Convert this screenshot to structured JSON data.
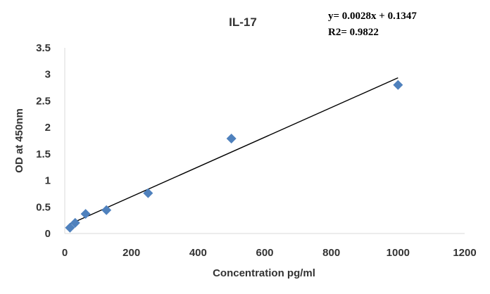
{
  "chart_data": {
    "type": "scatter",
    "title": "IL-17",
    "xlabel": "Concentration pg/ml",
    "ylabel": "OD at 450nm",
    "xlim": [
      0,
      1200
    ],
    "ylim": [
      0,
      3.5
    ],
    "x_ticks": [
      "0",
      "200",
      "400",
      "600",
      "800",
      "1000",
      "1200"
    ],
    "y_ticks": [
      "0",
      "0.5",
      "1",
      "1.5",
      "2",
      "2.5",
      "3",
      "3.5"
    ],
    "grid": false,
    "legend": "none",
    "marker": "diamond",
    "series": [
      {
        "color": "#4f81bd",
        "points": [
          {
            "x": 15.6,
            "y": 0.11
          },
          {
            "x": 31.25,
            "y": 0.2
          },
          {
            "x": 62.5,
            "y": 0.37
          },
          {
            "x": 125,
            "y": 0.44
          },
          {
            "x": 250,
            "y": 0.76
          },
          {
            "x": 500,
            "y": 1.79
          },
          {
            "x": 1000,
            "y": 2.8
          }
        ]
      }
    ],
    "trendline": {
      "type": "linear",
      "slope": 0.0028,
      "intercept": 0.1347,
      "x_range": [
        15.6,
        1000
      ],
      "color": "#000000"
    },
    "annotations": {
      "equation": "y= 0.0028x + 0.1347",
      "r2": "R2= 0.9822"
    }
  }
}
